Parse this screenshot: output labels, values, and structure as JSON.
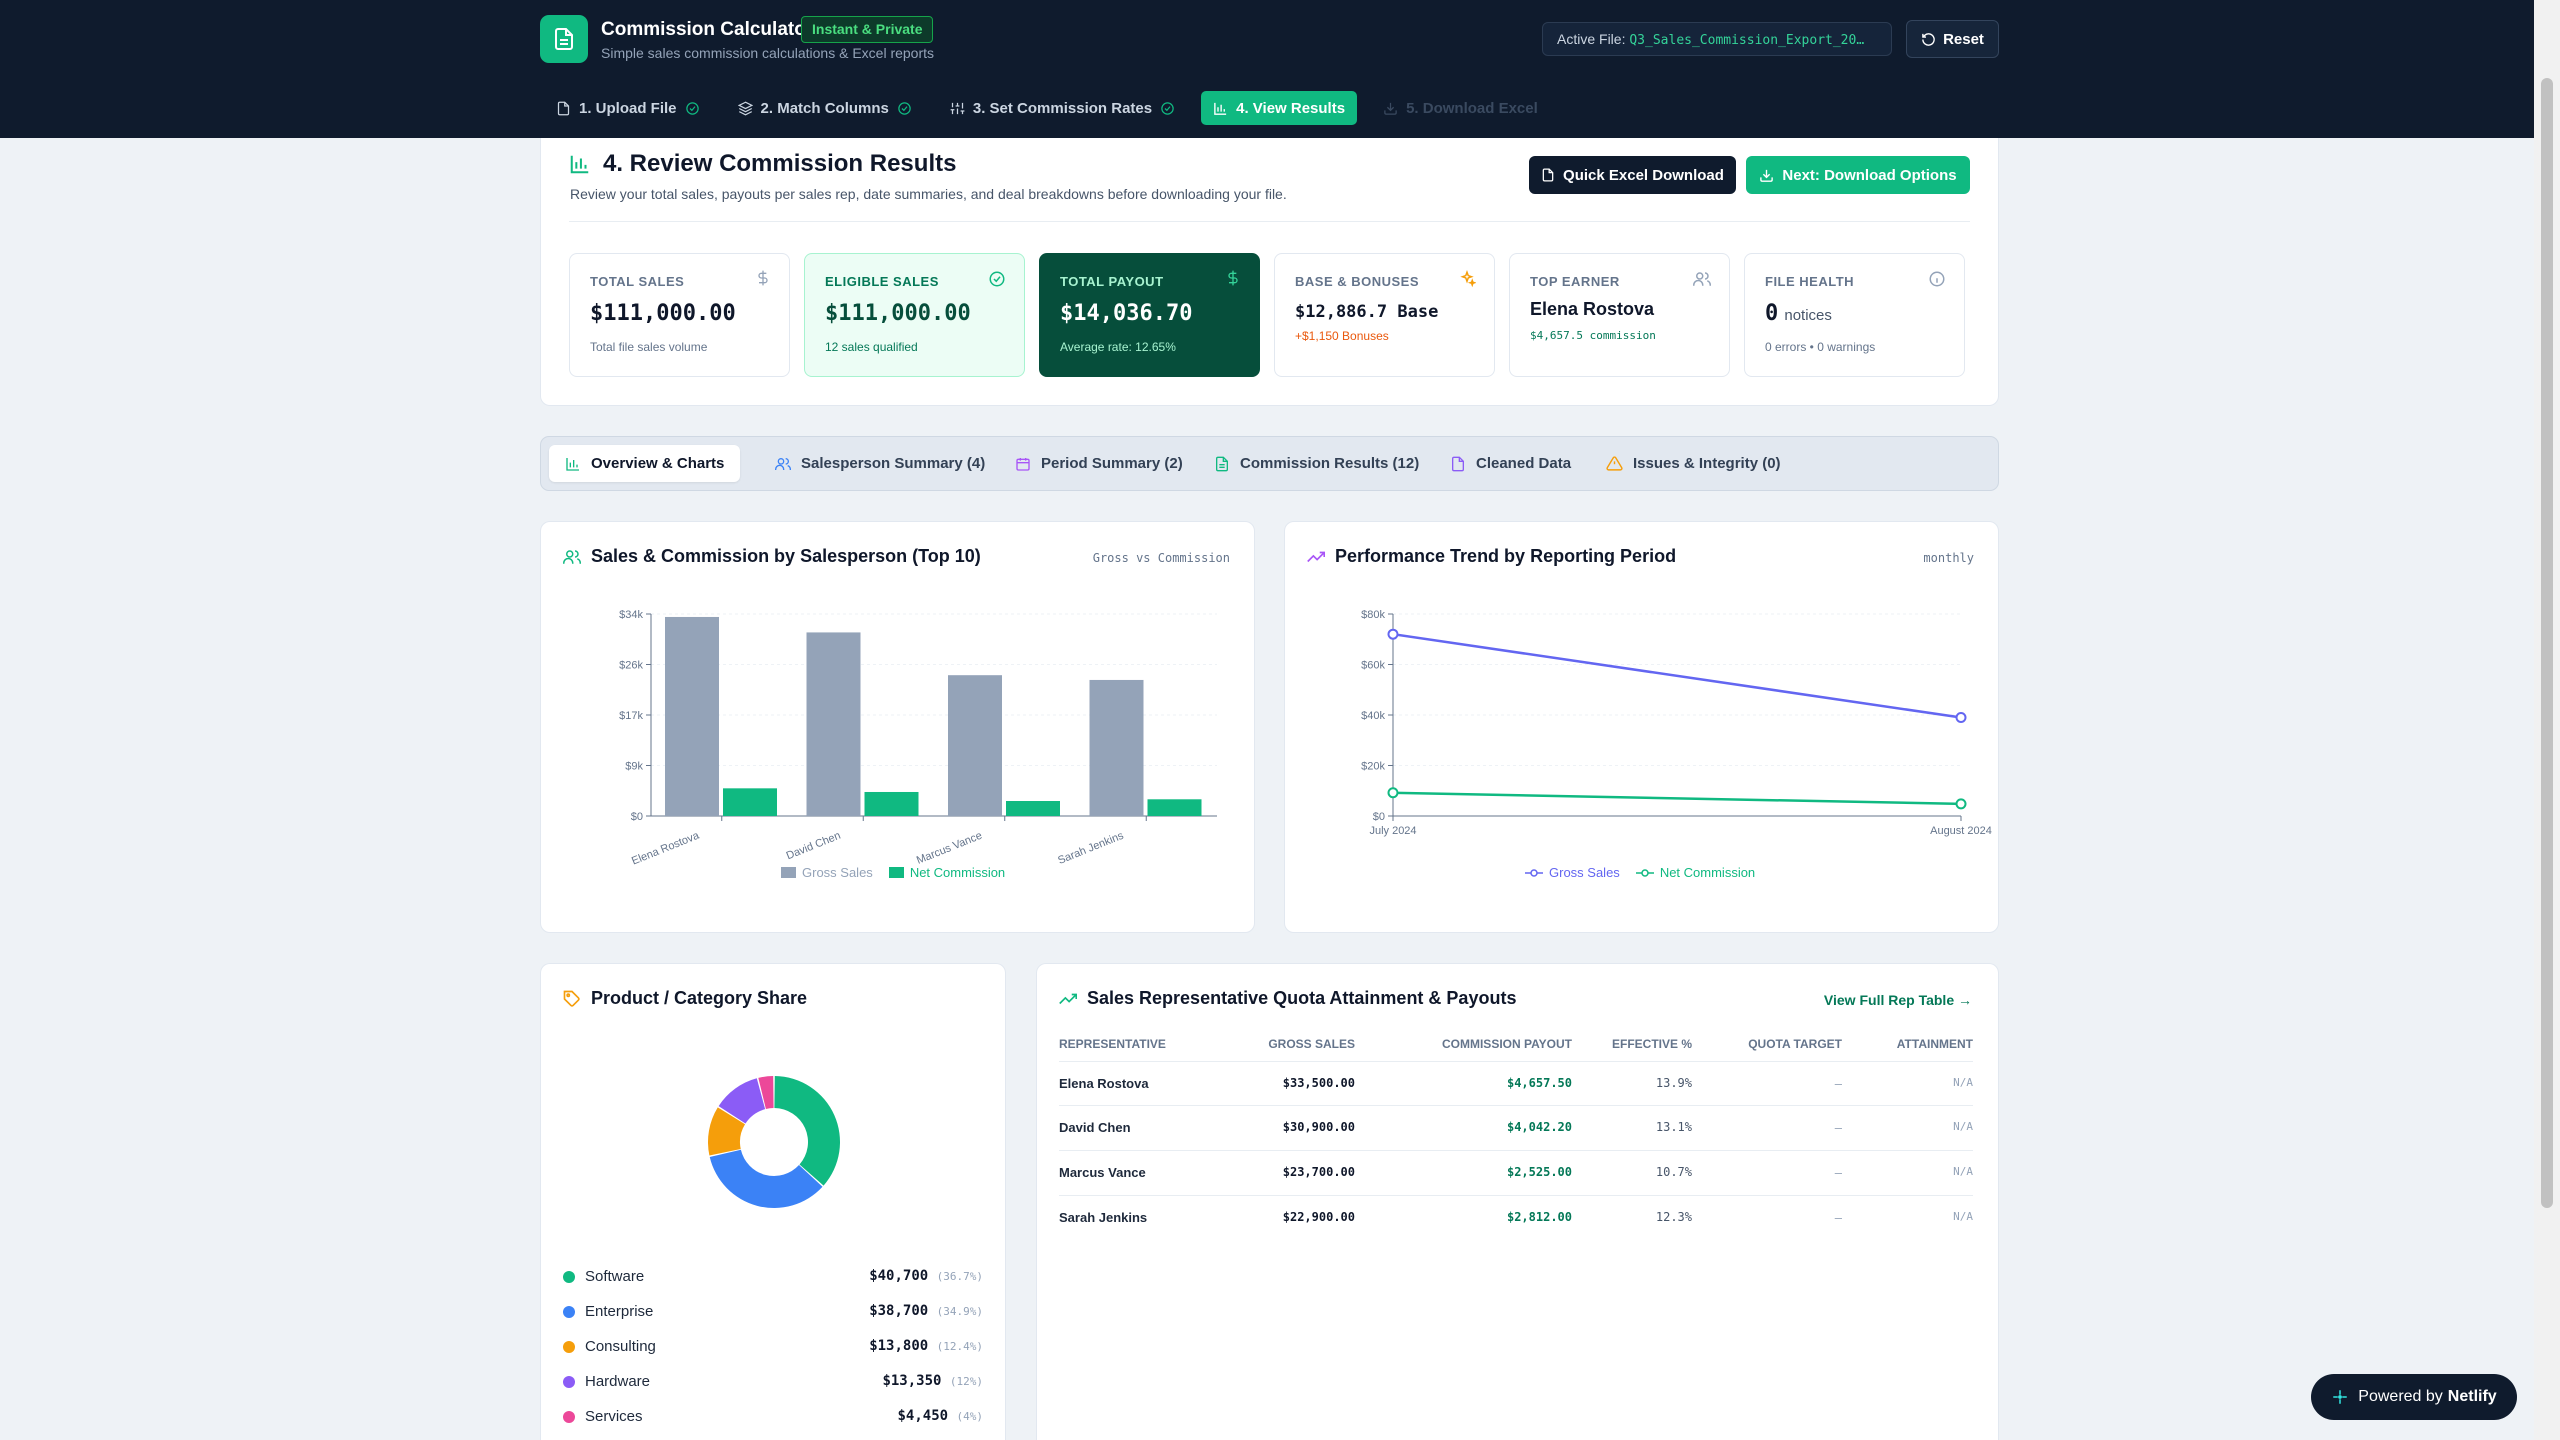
{
  "header": {
    "app_title": "Commission Calculator",
    "badge": "Instant & Private",
    "subtitle": "Simple sales commission calculations & Excel reports",
    "active_file_label": "Active File:",
    "active_file_name": "Q3_Sales_Commission_Export_20…",
    "reset_label": "Reset"
  },
  "steps": [
    {
      "label": "1. Upload File",
      "state": "done"
    },
    {
      "label": "2. Match Columns",
      "state": "done"
    },
    {
      "label": "3. Set Commission Rates",
      "state": "done"
    },
    {
      "label": "4. View Results",
      "state": "active"
    },
    {
      "label": "5. Download Excel",
      "state": "disabled"
    }
  ],
  "results": {
    "title": "4. Review Commission Results",
    "subtitle": "Review your total sales, payouts per sales rep, date summaries, and deal breakdowns before downloading your file.",
    "quick_download_label": "Quick Excel Download",
    "next_label": "Next: Download Options"
  },
  "cards": {
    "total_sales": {
      "label": "TOTAL SALES",
      "value": "$111,000.00",
      "note": "Total file sales volume"
    },
    "eligible_sales": {
      "label": "ELIGIBLE SALES",
      "value": "$111,000.00",
      "note": "12 sales qualified"
    },
    "total_payout": {
      "label": "TOTAL PAYOUT",
      "value": "$14,036.70",
      "note": "Average rate: 12.65%"
    },
    "base_bonuses": {
      "label": "BASE & BONUSES",
      "value": "$12,886.7",
      "value_suffix": "Base",
      "note": "+$1,150 Bonuses"
    },
    "top_earner": {
      "label": "TOP EARNER",
      "value": "Elena Rostova",
      "note": "$4,657.5 commission"
    },
    "file_health": {
      "label": "FILE HEALTH",
      "value": "0",
      "value_suffix": "notices",
      "note": "0 errors • 0 warnings"
    }
  },
  "tabs": [
    {
      "label": "Overview & Charts",
      "active": true
    },
    {
      "label": "Salesperson Summary (4)"
    },
    {
      "label": "Period Summary (2)"
    },
    {
      "label": "Commission Results (12)"
    },
    {
      "label": "Cleaned Data"
    },
    {
      "label": "Issues & Integrity (0)"
    }
  ],
  "bar_chart_panel": {
    "title": "Sales & Commission by Salesperson (Top 10)",
    "tag": "Gross vs Commission"
  },
  "line_chart_panel": {
    "title": "Performance Trend by Reporting Period",
    "tag": "monthly"
  },
  "chart_data": [
    {
      "type": "bar",
      "categories": [
        "Elena Rostova",
        "David Chen",
        "Marcus Vance",
        "Sarah Jenkins"
      ],
      "series": [
        {
          "name": "Gross Sales",
          "color": "#94a3b8",
          "values": [
            33500,
            30900,
            23700,
            22900
          ]
        },
        {
          "name": "Net Commission",
          "color": "#10b981",
          "values": [
            4657.5,
            4042.2,
            2525,
            2812
          ]
        }
      ],
      "yticks": [
        "$0",
        "$9k",
        "$17k",
        "$26k",
        "$34k"
      ],
      "ylim": [
        0,
        34000
      ],
      "legend": "bottom",
      "grid": true
    },
    {
      "type": "line",
      "x": [
        "July 2024",
        "August 2024"
      ],
      "series": [
        {
          "name": "Gross Sales",
          "color": "#6366f1",
          "values": [
            72000,
            39000
          ]
        },
        {
          "name": "Net Commission",
          "color": "#10b981",
          "values": [
            9200,
            4800
          ]
        }
      ],
      "yticks": [
        "$0",
        "$20k",
        "$40k",
        "$60k",
        "$80k"
      ],
      "ylim": [
        0,
        80000
      ],
      "legend": "bottom",
      "grid": true
    },
    {
      "type": "pie",
      "variant": "donut",
      "categories": [
        "Software",
        "Enterprise",
        "Consulting",
        "Hardware",
        "Services"
      ],
      "values": [
        40700,
        38700,
        13800,
        13350,
        4450
      ],
      "colors": [
        "#10b981",
        "#3b82f6",
        "#f59e0b",
        "#8b5cf6",
        "#ec4899"
      ]
    }
  ],
  "category_panel": {
    "title": "Product / Category Share",
    "items": [
      {
        "name": "Software",
        "value": "$40,700",
        "pct": "(36.7%)",
        "color": "#10b981"
      },
      {
        "name": "Enterprise",
        "value": "$38,700",
        "pct": "(34.9%)",
        "color": "#3b82f6"
      },
      {
        "name": "Consulting",
        "value": "$13,800",
        "pct": "(12.4%)",
        "color": "#f59e0b"
      },
      {
        "name": "Hardware",
        "value": "$13,350",
        "pct": "(12%)",
        "color": "#8b5cf6"
      },
      {
        "name": "Services",
        "value": "$4,450",
        "pct": "(4%)",
        "color": "#ec4899"
      }
    ]
  },
  "rep_table": {
    "title": "Sales Representative Quota Attainment & Payouts",
    "link": "View Full Rep Table →",
    "columns": [
      "REPRESENTATIVE",
      "GROSS SALES",
      "COMMISSION PAYOUT",
      "EFFECTIVE %",
      "QUOTA TARGET",
      "ATTAINMENT"
    ],
    "rows": [
      {
        "name": "Elena Rostova",
        "gross": "$33,500.00",
        "payout": "$4,657.50",
        "eff": "13.9%",
        "quota": "–",
        "att": "N/A"
      },
      {
        "name": "David Chen",
        "gross": "$30,900.00",
        "payout": "$4,042.20",
        "eff": "13.1%",
        "quota": "–",
        "att": "N/A"
      },
      {
        "name": "Marcus Vance",
        "gross": "$23,700.00",
        "payout": "$2,525.00",
        "eff": "10.7%",
        "quota": "–",
        "att": "N/A"
      },
      {
        "name": "Sarah Jenkins",
        "gross": "$22,900.00",
        "payout": "$2,812.00",
        "eff": "12.3%",
        "quota": "–",
        "att": "N/A"
      }
    ]
  },
  "footer": {
    "powered_by": "Powered by",
    "brand": "Netlify"
  },
  "colors": {
    "accent": "#10b981",
    "navy": "#0f1b2d",
    "payout_card": "#064e3b"
  }
}
